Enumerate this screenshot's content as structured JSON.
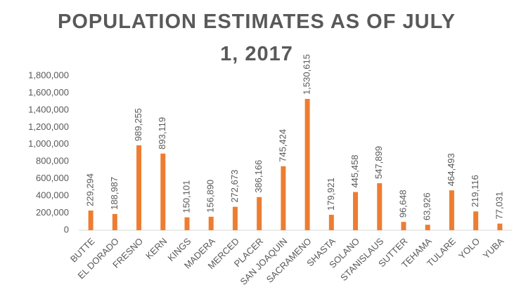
{
  "chart_data": {
    "type": "bar",
    "title": "POPULATION ESTIMATES AS OF JULY 1, 2017",
    "categories": [
      "BUTTE",
      "EL DORADO",
      "FRESNO",
      "KERN",
      "KINGS",
      "MADERA",
      "MERCED",
      "PLACER",
      "SAN JOAQUIN",
      "SACRAMENO",
      "SHASTA",
      "SOLANO",
      "STANISLAUS",
      "SUTTER",
      "TEHAMA",
      "TULARE",
      "YOLO",
      "YUBA"
    ],
    "values": [
      229294,
      188987,
      989255,
      893119,
      150101,
      156890,
      272673,
      386166,
      745424,
      1530615,
      179921,
      445458,
      547899,
      96648,
      63926,
      464493,
      219116,
      77031
    ],
    "value_labels": [
      "229,294",
      "188,987",
      "989,255",
      "893,119",
      "150,101",
      "156,890",
      "272,673",
      "386,166",
      "745,424",
      "1,530,615",
      "179,921",
      "445,458",
      "547,899",
      "96,648",
      "63,926",
      "464,493",
      "219,116",
      "77,031"
    ],
    "color": "#ed7d31",
    "ylim": [
      0,
      1800000
    ],
    "yticks": [
      0,
      {
        "value": 200000,
        "label": "200,000"
      },
      {
        "value": 400000,
        "label": "400,000"
      },
      {
        "value": 600000,
        "label": "600,000"
      },
      {
        "value": 800000,
        "label": "800,000"
      },
      {
        "value": 1000000,
        "label": "1,000,000"
      },
      {
        "value": 1200000,
        "label": "1,200,000"
      },
      {
        "value": 1400000,
        "label": "1,400,000"
      },
      {
        "value": 1600000,
        "label": "1,600,000"
      },
      {
        "value": 1800000,
        "label": "1,800,000"
      }
    ],
    "grid": false
  }
}
